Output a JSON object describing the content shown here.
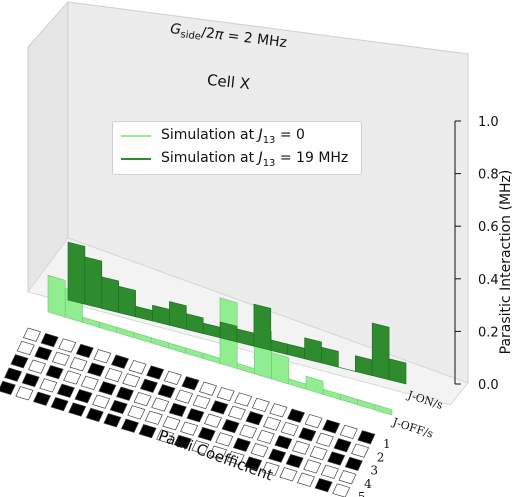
{
  "chart_data": {
    "type": "bar",
    "title_top": "G_side/2π = 2 MHz",
    "cell_label": "Cell X",
    "zlabel": "Parasitic Interaction (MHz)",
    "xlabel": "Pauli Coefficient",
    "zlim": [
      0,
      1.0
    ],
    "zticks": [
      "0.0",
      "0.2",
      "0.4",
      "0.6",
      "0.8",
      "1.0"
    ],
    "row_labels": [
      "J-ON/s",
      "J-OFF/s"
    ],
    "qubit_labels": [
      "1",
      "2",
      "3",
      "4",
      "5"
    ],
    "legend_position": "upper-center",
    "series": [
      {
        "name": "Simulation at J13 = 0",
        "color": "#90ee90",
        "row": "J-OFF/s",
        "values": [
          0.14,
          0.11,
          0.02,
          0.02,
          0.02,
          0.02,
          0.02,
          0.02,
          0.02,
          0.02,
          0.25,
          0.02,
          0.18,
          0.1,
          0.02,
          0.05,
          0.02,
          0.02,
          0.02,
          0.02
        ]
      },
      {
        "name": "Simulation at J13 = 19 MHz",
        "color": "#2e8b2e",
        "row": "J-ON/s",
        "values": [
          0.22,
          0.18,
          0.12,
          0.1,
          0.04,
          0.06,
          0.09,
          0.06,
          0.04,
          0.06,
          0.05,
          0.16,
          0.04,
          0.04,
          0.08,
          0.06,
          0.0,
          0.06,
          0.2,
          0.08
        ]
      }
    ],
    "pauli_grid": [
      [
        0,
        1,
        0,
        1,
        0,
        1,
        0,
        1,
        0,
        1,
        0,
        0,
        0,
        0,
        0,
        1,
        0,
        1,
        0,
        1
      ],
      [
        0,
        1,
        0,
        0,
        1,
        0,
        0,
        1,
        1,
        0,
        0,
        1,
        0,
        1,
        0,
        0,
        1,
        0,
        1,
        0
      ],
      [
        1,
        0,
        1,
        0,
        0,
        1,
        1,
        0,
        0,
        1,
        1,
        0,
        1,
        0,
        0,
        1,
        0,
        0,
        1,
        1
      ],
      [
        1,
        1,
        0,
        1,
        1,
        0,
        1,
        0,
        0,
        0,
        0,
        1,
        0,
        1,
        0,
        1,
        1,
        0,
        0,
        0
      ],
      [
        1,
        0,
        1,
        1,
        1,
        1,
        1,
        1,
        1,
        0,
        1,
        0,
        0,
        0,
        1,
        0,
        0,
        0,
        1,
        0
      ]
    ],
    "colors": {
      "light_green": "#90ee90",
      "dark_green": "#2e8b2e",
      "pane_back": "#ececec",
      "pane_side": "#e2e2e2",
      "pane_floor": "#f3f3f3"
    }
  }
}
